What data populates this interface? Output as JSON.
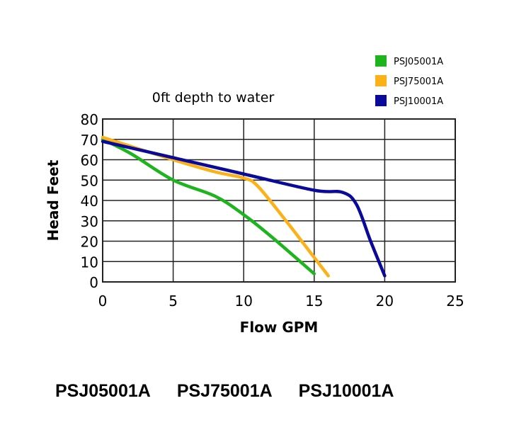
{
  "chart_data": {
    "type": "line",
    "title": "0ft depth to water",
    "xlabel": "Flow GPM",
    "ylabel": "Head Feet",
    "xlim": [
      0,
      25
    ],
    "ylim": [
      0,
      80
    ],
    "xticks": [
      0,
      5,
      10,
      15,
      20,
      25
    ],
    "yticks": [
      0,
      10,
      20,
      30,
      40,
      50,
      60,
      70,
      80
    ],
    "grid": true,
    "legend_position": "top-right",
    "series": [
      {
        "name": "PSJ05001A",
        "color": "#1eb41e",
        "x": [
          0,
          2,
          5,
          8,
          10,
          12,
          15
        ],
        "y": [
          70,
          63,
          50,
          42,
          33,
          22,
          4
        ]
      },
      {
        "name": "PSJ75001A",
        "color": "#fbb117",
        "x": [
          0,
          5,
          8,
          10,
          11,
          13,
          15,
          16
        ],
        "y": [
          71,
          60,
          54,
          51,
          47,
          30,
          12,
          3
        ]
      },
      {
        "name": "PSJ10001A",
        "color": "#0a0a9a",
        "x": [
          0,
          5,
          10,
          15,
          17,
          18,
          19,
          20
        ],
        "y": [
          69,
          61,
          53,
          45,
          44,
          38,
          20,
          3
        ]
      }
    ]
  },
  "models": [
    "PSJ05001A",
    "PSJ75001A",
    "PSJ10001A"
  ]
}
